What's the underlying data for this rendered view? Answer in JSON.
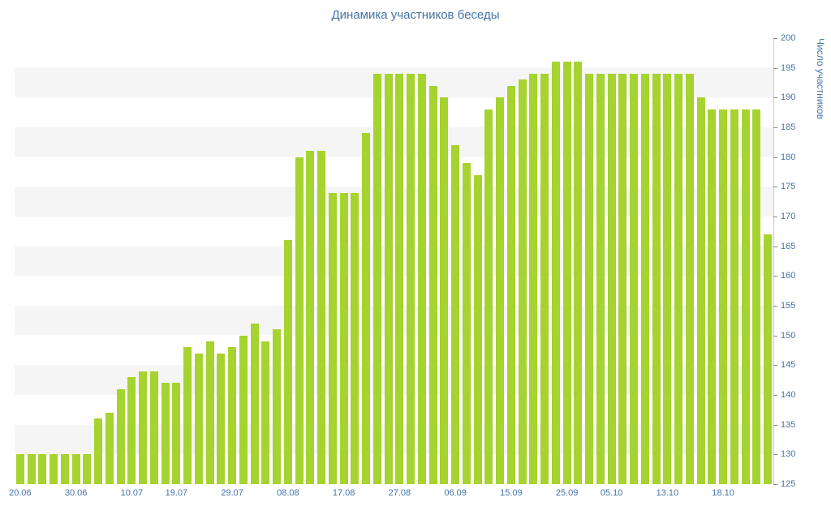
{
  "chart": {
    "title": "Динамика участников беседы",
    "y_axis_title": "Число участников",
    "colors": {
      "bar": "#a6d32f",
      "title": "#4572a7",
      "axis_label": "#4572a7",
      "stripe": "#f5f5f5"
    }
  },
  "chart_data": {
    "type": "bar",
    "title": "Динамика участников беседы",
    "xlabel": "",
    "ylabel": "Число участников",
    "ylim": [
      125,
      200
    ],
    "y_ticks": [
      125,
      130,
      135,
      140,
      145,
      150,
      155,
      160,
      165,
      170,
      175,
      180,
      185,
      190,
      195,
      200
    ],
    "grid": "alternating horizontal bands, 5-unit steps",
    "legend": "none",
    "x_tick_labels": [
      "20.06",
      "30.06",
      "10.07",
      "19.07",
      "29.07",
      "08.08",
      "17.08",
      "27.08",
      "06.09",
      "15.09",
      "25.09",
      "05.10",
      "13.10",
      "18.10"
    ],
    "x_tick_indices": [
      0,
      5,
      10,
      14,
      19,
      24,
      29,
      34,
      39,
      44,
      49,
      53,
      58,
      63
    ],
    "values": [
      130,
      130,
      130,
      130,
      130,
      130,
      130,
      136,
      137,
      141,
      143,
      144,
      144,
      142,
      142,
      148,
      147,
      149,
      147,
      148,
      150,
      152,
      149,
      151,
      166,
      180,
      181,
      181,
      174,
      174,
      174,
      184,
      194,
      194,
      194,
      194,
      194,
      192,
      190,
      182,
      179,
      177,
      188,
      190,
      192,
      193,
      194,
      194,
      196,
      196,
      196,
      194,
      194,
      194,
      194,
      194,
      194,
      194,
      194,
      194,
      194,
      190,
      188,
      188,
      188,
      188,
      188,
      167
    ]
  }
}
